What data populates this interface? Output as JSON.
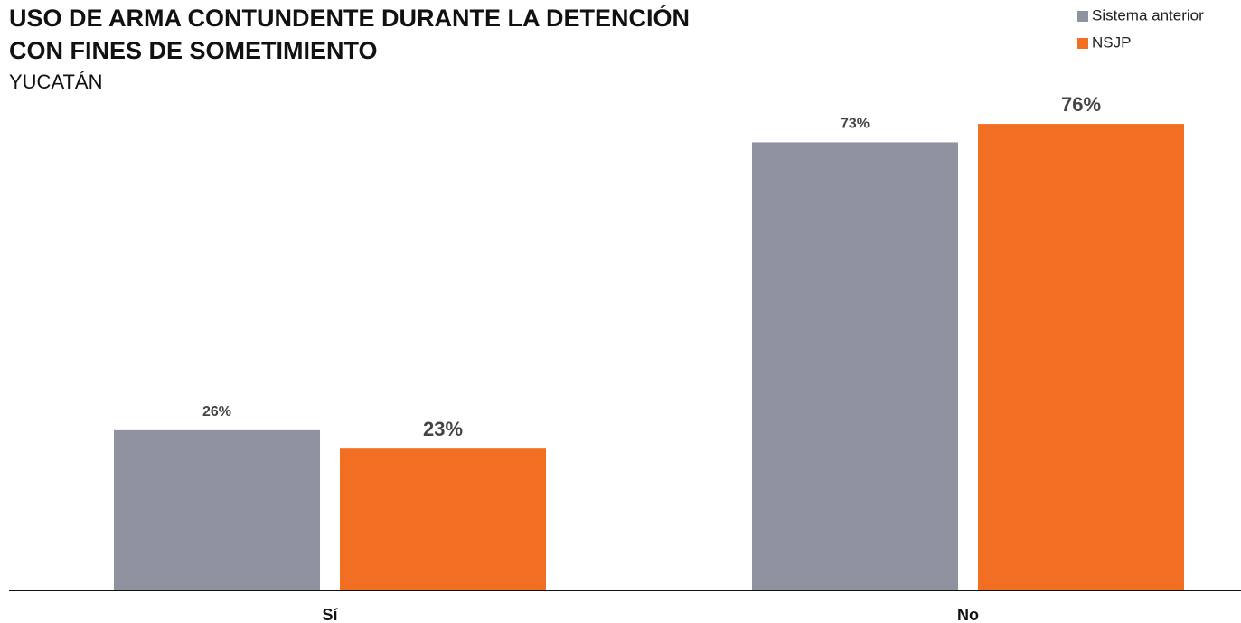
{
  "chart_data": {
    "type": "bar",
    "title": [
      "USO DE ARMA CONTUNDENTE DURANTE LA DETENCIÓN",
      "CON FINES DE SOMETIMIENTO"
    ],
    "subtitle": "YUCATÁN",
    "categories": [
      "Sí",
      "No"
    ],
    "series": [
      {
        "name": "Sistema anterior",
        "color": "#8f939f",
        "values": [
          26,
          73
        ],
        "value_labels": [
          "26%",
          "73%"
        ]
      },
      {
        "name": "NSJP",
        "color": "#f26e22",
        "values": [
          23,
          76
        ],
        "value_labels": [
          "23%",
          "76%"
        ]
      }
    ],
    "ylim": [
      0,
      80
    ],
    "legend": "top-right"
  }
}
